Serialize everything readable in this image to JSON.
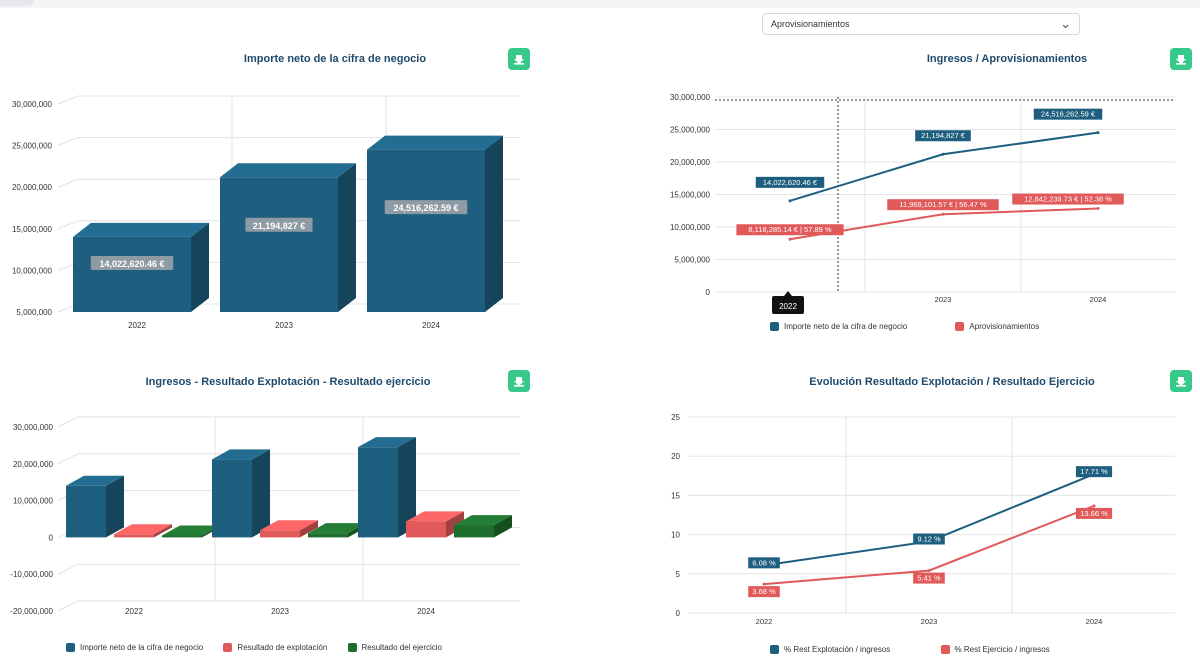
{
  "header": {
    "select_value": "Aprovisionamientos"
  },
  "colors": {
    "blue": "#1e5f7f",
    "red": "#e05a5a",
    "green": "#1f6e2e",
    "download": "#36c98a"
  },
  "chart_data": [
    {
      "type": "bar",
      "title": "Importe neto de la cifra de negocio",
      "categories": [
        "2022",
        "2023",
        "2024"
      ],
      "series": [
        {
          "name": "",
          "values": [
            14022620.46,
            21194827,
            24516262.59
          ],
          "labels": [
            "14,022,620.46 €",
            "21,194,827 €",
            "24,516,262.59 €"
          ]
        }
      ],
      "ylim": [
        5000000,
        30000000
      ],
      "yticks": [
        "30,000,000",
        "25,000,000",
        "20,000,000",
        "15,000,000",
        "10,000,000",
        "5,000,000"
      ],
      "grid": true,
      "style": "3d"
    },
    {
      "type": "line",
      "title": "Ingresos / Aprovisionamientos",
      "categories": [
        "2022",
        "2023",
        "2024"
      ],
      "series": [
        {
          "name": "Importe neto de la cifra de negocio",
          "values": [
            14022620.46,
            21194827,
            24516262.59
          ],
          "labels": [
            "14,022,620.46 €",
            "21,194,827 €",
            "24,516,262.59 €"
          ]
        },
        {
          "name": "Aprovisionamientos",
          "values": [
            8118285.14,
            11969101.57,
            12842239.73
          ],
          "labels": [
            "8,118,285.14 € | 57.89 %",
            "11,969,101.57 € | 56.47 %",
            "12,842,239.73 € | 52.38 %"
          ]
        }
      ],
      "ylim": [
        0,
        30000000
      ],
      "yticks": [
        "30,000,000",
        "25,000,000",
        "20,000,000",
        "15,000,000",
        "10,000,000",
        "5,000,000",
        "0"
      ],
      "tooltip": "2022",
      "legend": "bottom",
      "grid": true
    },
    {
      "type": "bar",
      "title": "Ingresos - Resultado Explotación - Resultado ejercicio",
      "categories": [
        "2022",
        "2023",
        "2024"
      ],
      "series": [
        {
          "name": "Importe neto de la cifra de negocio",
          "values": [
            14022620.46,
            21194827,
            24516262.59
          ]
        },
        {
          "name": "Resultado de explotación",
          "values": [
            850000,
            1930000,
            4340000
          ]
        },
        {
          "name": "Resultado del ejercicio",
          "values": [
            520000,
            1150000,
            3350000
          ]
        }
      ],
      "ylim": [
        -20000000,
        30000000
      ],
      "yticks": [
        "30,000,000",
        "20,000,000",
        "10,000,000",
        "0",
        "-10,000,000",
        "-20,000,000"
      ],
      "legend": "bottom",
      "grid": true,
      "style": "3d"
    },
    {
      "type": "line",
      "title": "Evolución Resultado Explotación / Resultado Ejercicio",
      "categories": [
        "2022",
        "2023",
        "2024"
      ],
      "series": [
        {
          "name": "% Rest Explotación / ingresos",
          "values": [
            6.08,
            9.12,
            17.71
          ],
          "labels": [
            "6.08 %",
            "9.12 %",
            "17.71 %"
          ]
        },
        {
          "name": "% Rest Ejercicio / ingresos",
          "values": [
            3.68,
            5.41,
            13.66
          ],
          "labels": [
            "3.68 %",
            "5.41 %",
            "13.66 %"
          ]
        }
      ],
      "ylim": [
        0,
        25
      ],
      "yticks": [
        "25",
        "20",
        "15",
        "10",
        "5",
        "0"
      ],
      "legend": "bottom",
      "grid": true
    }
  ]
}
